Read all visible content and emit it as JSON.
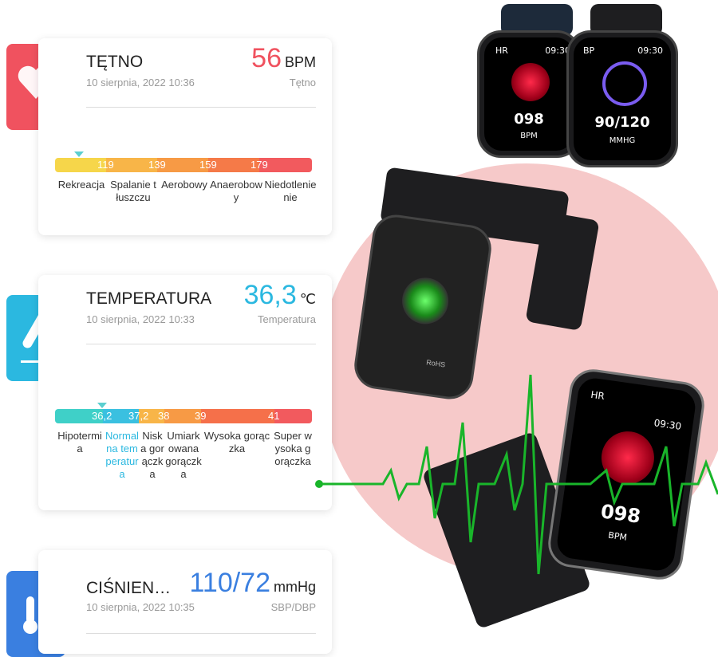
{
  "heart_rate": {
    "title": "TĘTNO",
    "date": "10 sierpnia, 2022 10:36",
    "value": "56",
    "unit": "BPM",
    "subtitle": "Tętno",
    "ticks": [
      "119",
      "139",
      "159",
      "179"
    ],
    "zones": [
      "Rekreacja",
      "Spalanie tłuszczu",
      "Aerobowy",
      "Anaerobowy",
      "Niedotlenienie"
    ],
    "accent": "#f0525f"
  },
  "temperature": {
    "title": "TEMPERATURA",
    "date": "10 sierpnia, 2022 10:33",
    "value": "36,3",
    "unit": "℃",
    "subtitle": "Temperatura",
    "ticks": [
      "36,2",
      "37,2",
      "38",
      "39",
      "41"
    ],
    "zones": [
      "Hipotermia",
      "Normalna temperatura",
      "Niska gorączka",
      "Umiarkowana gorączka",
      "Wysoka gorączka",
      "Super wysoka gorączka"
    ],
    "accent": "#2bb8e0"
  },
  "pressure": {
    "title": "CIŚNIEN…",
    "date": "10 sierpnia, 2022 10:35",
    "value": "110/72",
    "unit": "mmHg",
    "subtitle": "SBP/DBP",
    "accent": "#3a7fe0"
  },
  "watch_hr": {
    "label": "HR",
    "time": "09:30",
    "value": "098",
    "unit": "BPM"
  },
  "watch_bp": {
    "label": "BP",
    "time": "09:30",
    "value": "90/120",
    "unit": "MMHG"
  },
  "watch_back": {
    "text": "RoHS"
  }
}
